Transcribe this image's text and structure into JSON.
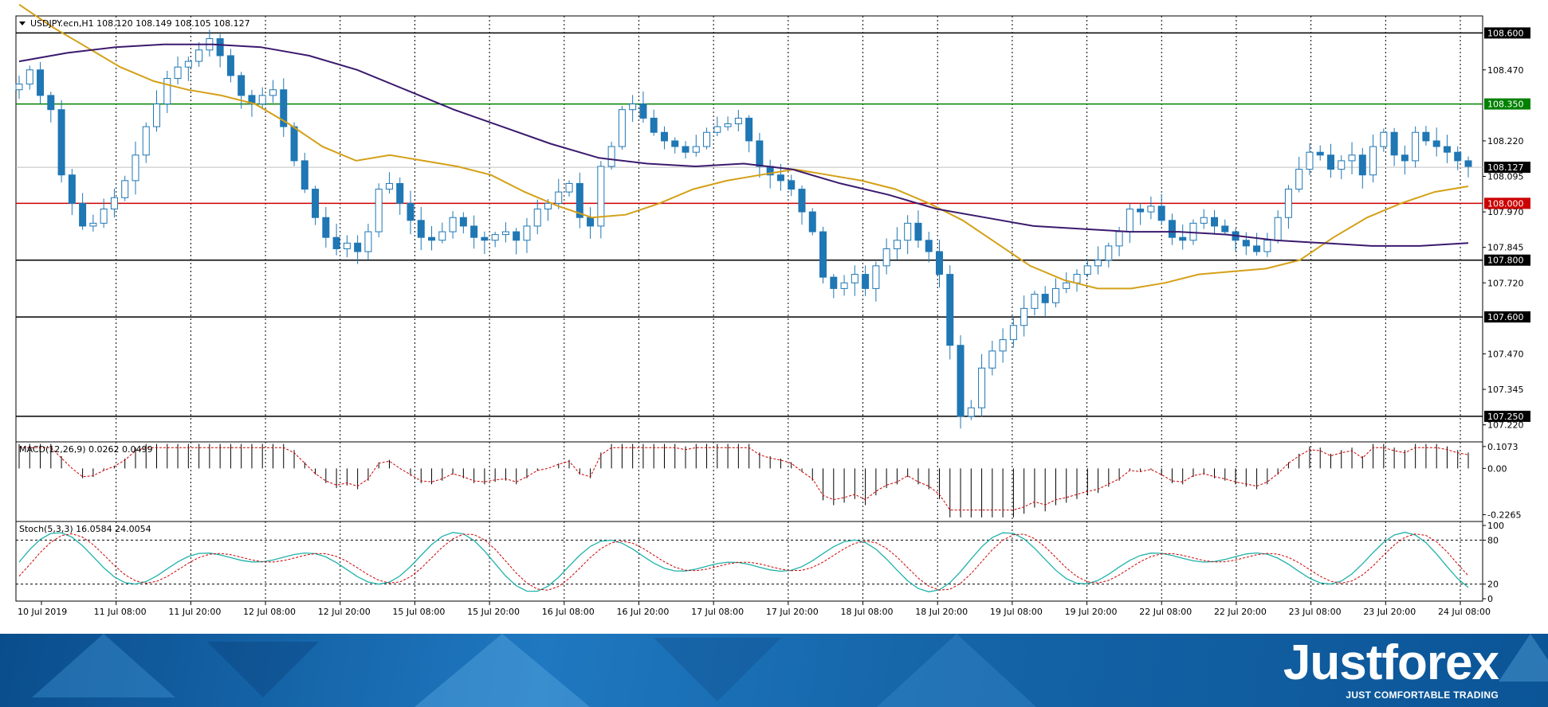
{
  "header": {
    "symbol_line": "USDJPY.ecn,H1  108.120 108.149 108.105 108.127",
    "macd_label": "MACD(12,26,9) 0.0262 0.0499",
    "stoch_label": "Stoch(5,3,3) 16.0584 24.0054"
  },
  "brand": {
    "name": "Justforex",
    "tagline": "JUST COMFORTABLE TRADING"
  },
  "colors": {
    "candle": "#1f77b4",
    "ma_fast": "#d4a017",
    "ma_slow": "#3b1a6e",
    "resistance": "#008000",
    "pivot": "#cc0000",
    "level": "#000000",
    "stoch_main": "#20b2aa",
    "stoch_signal": "#cc0000",
    "footer": "#1565a8"
  },
  "chart_data": [
    {
      "type": "candlestick",
      "title": "USDJPY.ecn,H1",
      "ylim": [
        107.16,
        108.66
      ],
      "y_ticks": [
        "108.470",
        "108.220",
        "108.095",
        "107.970",
        "107.845",
        "107.720",
        "107.470",
        "107.345",
        "107.220"
      ],
      "x_tick_labels": [
        "10 Jul 2019",
        "11 Jul 08:00",
        "11 Jul 20:00",
        "12 Jul 08:00",
        "12 Jul 20:00",
        "15 Jul 08:00",
        "15 Jul 20:00",
        "16 Jul 08:00",
        "16 Jul 20:00",
        "17 Jul 08:00",
        "17 Jul 20:00",
        "18 Jul 08:00",
        "18 Jul 20:00",
        "19 Jul 08:00",
        "19 Jul 20:00",
        "22 Jul 08:00",
        "22 Jul 20:00",
        "23 Jul 08:00",
        "23 Jul 20:00",
        "24 Jul 08:00"
      ],
      "horizontal_levels": [
        {
          "value": 108.6,
          "label": "108.600",
          "role": "level"
        },
        {
          "value": 108.35,
          "label": "108.350",
          "role": "resistance"
        },
        {
          "value": 108.127,
          "label": "108.127",
          "role": "current"
        },
        {
          "value": 108.0,
          "label": "108.000",
          "role": "pivot"
        },
        {
          "value": 107.8,
          "label": "107.800",
          "role": "level"
        },
        {
          "value": 107.6,
          "label": "107.600",
          "role": "level"
        },
        {
          "value": 107.25,
          "label": "107.250",
          "role": "level"
        }
      ],
      "close_path": [
        108.42,
        108.47,
        108.38,
        108.33,
        108.1,
        108.0,
        107.92,
        107.93,
        107.98,
        108.02,
        108.08,
        108.17,
        108.27,
        108.35,
        108.44,
        108.48,
        108.5,
        108.54,
        108.58,
        108.52,
        108.45,
        108.38,
        108.35,
        108.38,
        108.4,
        108.27,
        108.15,
        108.05,
        107.95,
        107.88,
        107.84,
        107.86,
        107.83,
        107.9,
        108.05,
        108.07,
        108.0,
        107.94,
        107.88,
        107.87,
        107.9,
        107.95,
        107.92,
        107.88,
        107.87,
        107.89,
        107.9,
        107.87,
        107.92,
        107.98,
        108.0,
        108.04,
        108.07,
        107.95,
        107.92,
        108.13,
        108.2,
        108.33,
        108.35,
        108.3,
        108.25,
        108.22,
        108.2,
        108.18,
        108.2,
        108.25,
        108.27,
        108.28,
        108.3,
        108.22,
        108.13,
        108.1,
        108.08,
        108.05,
        107.97,
        107.9,
        107.74,
        107.7,
        107.72,
        107.75,
        107.7,
        107.78,
        107.84,
        107.87,
        107.93,
        107.87,
        107.83,
        107.75,
        107.5,
        107.25,
        107.28,
        107.42,
        107.48,
        107.52,
        107.57,
        107.63,
        107.68,
        107.65,
        107.7,
        107.72,
        107.75,
        107.78,
        107.8,
        107.85,
        107.9,
        107.98,
        107.97,
        107.99,
        107.94,
        107.88,
        107.87,
        107.93,
        107.95,
        107.92,
        107.9,
        107.87,
        107.85,
        107.83,
        107.87,
        107.95,
        108.05,
        108.12,
        108.18,
        108.17,
        108.12,
        108.15,
        108.17,
        108.1,
        108.2,
        108.25,
        108.17,
        108.15,
        108.25,
        108.22,
        108.2,
        108.18,
        108.15,
        108.13
      ],
      "series": [
        {
          "name": "MA fast",
          "values": [
            108.7,
            108.62,
            108.55,
            108.48,
            108.43,
            108.4,
            108.38,
            108.35,
            108.28,
            108.2,
            108.15,
            108.17,
            108.15,
            108.13,
            108.1,
            108.04,
            107.99,
            107.95,
            107.96,
            108.0,
            108.05,
            108.08,
            108.1,
            108.12,
            108.1,
            108.08,
            108.05,
            108.0,
            107.94,
            107.86,
            107.78,
            107.73,
            107.7,
            107.7,
            107.72,
            107.75,
            107.76,
            107.77,
            107.8,
            107.88,
            107.95,
            108.0,
            108.04,
            108.06
          ]
        },
        {
          "name": "MA slow",
          "values": [
            108.5,
            108.53,
            108.55,
            108.56,
            108.56,
            108.55,
            108.52,
            108.47,
            108.4,
            108.33,
            108.27,
            108.21,
            108.16,
            108.14,
            108.13,
            108.14,
            108.12,
            108.07,
            108.03,
            107.98,
            107.95,
            107.92,
            107.91,
            107.9,
            107.9,
            107.89,
            107.87,
            107.86,
            107.85,
            107.85,
            107.86
          ]
        }
      ]
    },
    {
      "type": "bar",
      "title": "MACD(12,26,9)",
      "values_label": "0.0262 0.0499",
      "y_ticks": [
        "0.1073",
        "0.00",
        "-0.2265"
      ],
      "ylim": [
        -0.26,
        0.13
      ]
    },
    {
      "type": "line",
      "title": "Stoch(5,3,3)",
      "values_label": "16.0584 24.0054",
      "y_ticks": [
        "100",
        "80",
        "20",
        "0"
      ],
      "levels": [
        80,
        20
      ],
      "ylim": [
        0,
        100
      ]
    }
  ]
}
